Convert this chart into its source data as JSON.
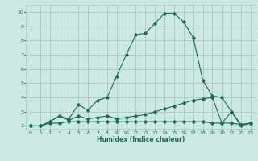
{
  "xlabel": "Humidex (Indice chaleur)",
  "bg_color": "#cce8e0",
  "grid_color": "#aacfc8",
  "line_color": "#1a6b5a",
  "xlim": [
    -0.5,
    23.5
  ],
  "ylim": [
    1.8,
    10.5
  ],
  "xticks": [
    0,
    1,
    2,
    3,
    4,
    5,
    6,
    7,
    8,
    9,
    10,
    11,
    12,
    13,
    14,
    15,
    16,
    17,
    18,
    19,
    20,
    21,
    22,
    23
  ],
  "yticks": [
    2,
    3,
    4,
    5,
    6,
    7,
    8,
    9,
    10
  ],
  "line1_x": [
    0,
    1,
    2,
    3,
    4,
    5,
    6,
    7,
    8,
    9,
    10,
    11,
    12,
    13,
    14,
    15,
    16,
    17,
    18,
    19,
    20,
    21,
    22,
    23
  ],
  "line1_y": [
    2.0,
    2.0,
    2.3,
    2.7,
    2.5,
    3.5,
    3.1,
    3.8,
    4.0,
    5.5,
    7.0,
    8.4,
    8.5,
    9.2,
    9.9,
    9.9,
    9.3,
    8.2,
    5.2,
    4.1,
    4.0,
    3.0,
    2.1,
    2.2
  ],
  "line2_x": [
    0,
    1,
    2,
    3,
    4,
    5,
    6,
    7,
    8,
    9,
    10,
    11,
    12,
    13,
    14,
    15,
    16,
    17,
    18,
    19,
    20,
    21,
    22,
    23
  ],
  "line2_y": [
    2.0,
    2.0,
    2.3,
    2.7,
    2.4,
    2.7,
    2.5,
    2.6,
    2.7,
    2.5,
    2.6,
    2.7,
    2.8,
    3.0,
    3.2,
    3.4,
    3.6,
    3.8,
    3.9,
    4.0,
    2.2,
    2.2,
    2.1,
    2.2
  ],
  "line3_x": [
    0,
    1,
    2,
    3,
    4,
    5,
    6,
    7,
    8,
    9,
    10,
    11,
    12,
    13,
    14,
    15,
    16,
    17,
    18,
    19,
    20,
    21,
    22,
    23
  ],
  "line3_y": [
    2.0,
    2.0,
    2.2,
    2.2,
    2.3,
    2.3,
    2.3,
    2.3,
    2.3,
    2.3,
    2.3,
    2.3,
    2.3,
    2.3,
    2.3,
    2.3,
    2.3,
    2.3,
    2.3,
    2.2,
    2.2,
    3.0,
    2.0,
    2.2
  ]
}
